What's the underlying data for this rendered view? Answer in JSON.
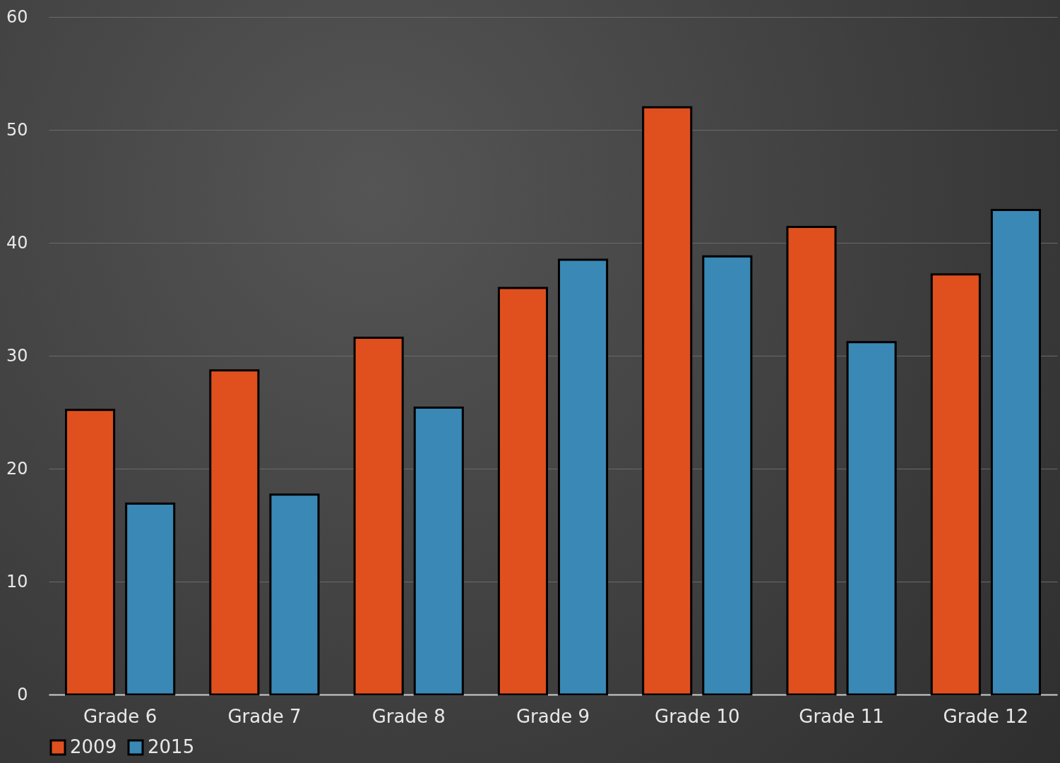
{
  "chart_data": {
    "type": "bar",
    "categories": [
      "Grade 6",
      "Grade 7",
      "Grade 8",
      "Grade 9",
      "Grade 10",
      "Grade 11",
      "Grade 12"
    ],
    "series": [
      {
        "name": "2009",
        "color": "#e0501f",
        "values": [
          25.2,
          28.7,
          31.6,
          36.0,
          52.0,
          41.4,
          37.2
        ]
      },
      {
        "name": "2015",
        "color": "#3a88b5",
        "values": [
          16.9,
          17.7,
          25.4,
          38.5,
          38.8,
          31.2,
          42.9
        ]
      }
    ],
    "ylim": [
      0,
      60
    ],
    "yticks": [
      0,
      10,
      20,
      30,
      40,
      50,
      60
    ],
    "grid": "y",
    "legend": "bottom"
  }
}
